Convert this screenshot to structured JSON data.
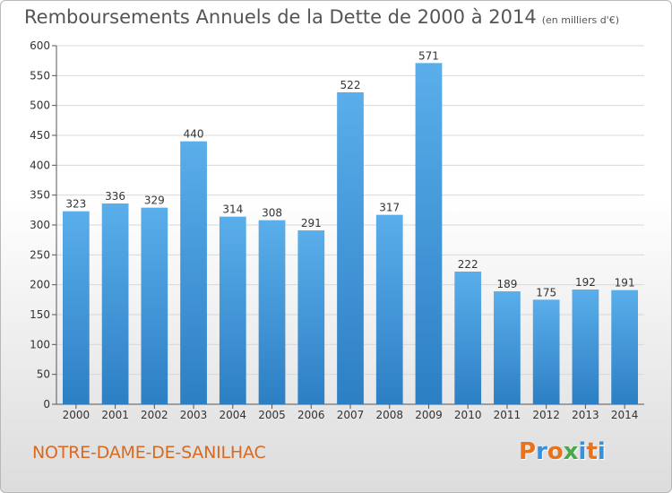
{
  "title": "Remboursements Annuels de la Dette de 2000 à 2014",
  "subtitle": "(en milliers d'€)",
  "commune": "NOTRE-DAME-DE-SANILHAC",
  "logo": {
    "text": "Proxiti",
    "colors": [
      "#e8731e",
      "#3a8fd9",
      "#e8731e",
      "#4aa84a",
      "#3a8fd9",
      "#e8731e",
      "#3a8fd9"
    ]
  },
  "colors": {
    "bar_top": "#5aaeea",
    "bar_bottom": "#2d7fc4",
    "grid": "#d8d8d8",
    "axis": "#555555",
    "title": "#555555",
    "commune": "#d8691f"
  },
  "chart_data": {
    "type": "bar",
    "title": "Remboursements Annuels de la Dette de 2000 à 2014",
    "xlabel": "",
    "ylabel": "",
    "ylim": [
      0,
      600
    ],
    "yticks": [
      0,
      50,
      100,
      150,
      200,
      250,
      300,
      350,
      400,
      450,
      500,
      550,
      600
    ],
    "categories": [
      "2000",
      "2001",
      "2002",
      "2003",
      "2004",
      "2005",
      "2006",
      "2007",
      "2008",
      "2009",
      "2010",
      "2011",
      "2012",
      "2013",
      "2014"
    ],
    "values": [
      323,
      336,
      329,
      440,
      314,
      308,
      291,
      522,
      317,
      571,
      222,
      189,
      175,
      192,
      191
    ],
    "grid": true
  }
}
